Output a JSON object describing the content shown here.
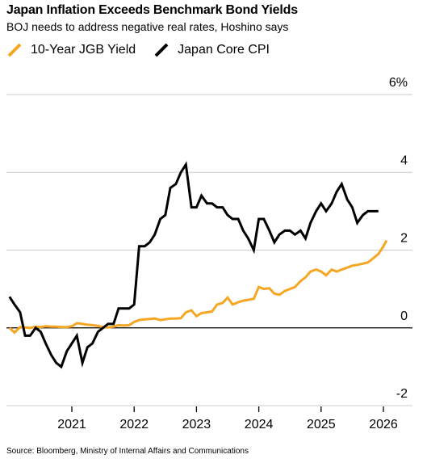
{
  "chart_data": {
    "type": "line",
    "title": "Japan Inflation Exceeds Benchmark Bond Yields",
    "subtitle": "BOJ needs to address negative real rates, Hoshino says",
    "source": "Source: Bloomberg, Ministry of Internal Affairs and Communications",
    "xlabel": "",
    "ylabel": "",
    "xlim": [
      2020.0,
      2026.3
    ],
    "ylim": [
      -2,
      6
    ],
    "y_ticks": [
      -2,
      0,
      2,
      4,
      6
    ],
    "y_tick_labels": [
      "-2",
      "0",
      "2",
      "4",
      "6%"
    ],
    "x_ticks": [
      2021,
      2022,
      2023,
      2024,
      2025,
      2026
    ],
    "x_tick_labels": [
      "2021",
      "2022",
      "2023",
      "2024",
      "2025",
      "2026"
    ],
    "grid": true,
    "legend_position": "top-left",
    "series": [
      {
        "name": "10-Year JGB Yield",
        "color": "#f5a623",
        "x": [
          2020.0,
          2020.08,
          2020.17,
          2020.25,
          2020.33,
          2020.42,
          2020.5,
          2020.58,
          2020.67,
          2020.75,
          2020.83,
          2020.92,
          2021.0,
          2021.08,
          2021.17,
          2021.25,
          2021.33,
          2021.42,
          2021.5,
          2021.58,
          2021.67,
          2021.75,
          2021.83,
          2021.92,
          2022.0,
          2022.08,
          2022.17,
          2022.25,
          2022.33,
          2022.42,
          2022.5,
          2022.58,
          2022.67,
          2022.75,
          2022.83,
          2022.92,
          2023.0,
          2023.08,
          2023.17,
          2023.25,
          2023.33,
          2023.42,
          2023.5,
          2023.58,
          2023.67,
          2023.75,
          2023.83,
          2023.92,
          2024.0,
          2024.08,
          2024.17,
          2024.25,
          2024.33,
          2024.42,
          2024.5,
          2024.58,
          2024.67,
          2024.75,
          2024.83,
          2024.92,
          2025.0,
          2025.08,
          2025.17,
          2025.25,
          2025.33,
          2025.42,
          2025.5,
          2025.58,
          2025.67,
          2025.75,
          2025.83,
          2025.92,
          2026.0,
          2026.05
        ],
        "values": [
          0.0,
          -0.12,
          0.02,
          0.01,
          0.0,
          0.03,
          0.02,
          0.04,
          0.03,
          0.03,
          0.02,
          0.02,
          0.04,
          0.12,
          0.1,
          0.08,
          0.07,
          0.05,
          0.02,
          0.01,
          0.03,
          0.07,
          0.06,
          0.07,
          0.15,
          0.2,
          0.22,
          0.23,
          0.24,
          0.2,
          0.22,
          0.24,
          0.24,
          0.25,
          0.4,
          0.45,
          0.3,
          0.38,
          0.4,
          0.42,
          0.6,
          0.64,
          0.78,
          0.6,
          0.66,
          0.7,
          0.72,
          0.75,
          1.05,
          1.0,
          1.02,
          0.88,
          0.85,
          0.95,
          1.0,
          1.05,
          1.2,
          1.3,
          1.45,
          1.5,
          1.45,
          1.35,
          1.5,
          1.45,
          1.5,
          1.55,
          1.6,
          1.62,
          1.65,
          1.68,
          1.78,
          1.9,
          2.1,
          2.25
        ]
      },
      {
        "name": "Japan Core CPI",
        "color": "#000000",
        "x": [
          2020.0,
          2020.08,
          2020.17,
          2020.25,
          2020.33,
          2020.42,
          2020.5,
          2020.58,
          2020.67,
          2020.75,
          2020.83,
          2020.92,
          2021.0,
          2021.08,
          2021.17,
          2021.25,
          2021.33,
          2021.42,
          2021.5,
          2021.58,
          2021.67,
          2021.75,
          2021.83,
          2021.92,
          2022.0,
          2022.08,
          2022.17,
          2022.25,
          2022.33,
          2022.42,
          2022.5,
          2022.58,
          2022.67,
          2022.75,
          2022.83,
          2022.92,
          2023.0,
          2023.08,
          2023.17,
          2023.25,
          2023.33,
          2023.42,
          2023.5,
          2023.58,
          2023.67,
          2023.75,
          2023.83,
          2023.92,
          2024.0,
          2024.08,
          2024.17,
          2024.25,
          2024.33,
          2024.42,
          2024.5,
          2024.58,
          2024.67,
          2024.75,
          2024.83,
          2024.92,
          2025.0,
          2025.08,
          2025.17,
          2025.25,
          2025.33,
          2025.42,
          2025.5,
          2025.58,
          2025.67,
          2025.75,
          2025.83,
          2025.92
        ],
        "values": [
          0.8,
          0.6,
          0.4,
          -0.2,
          -0.2,
          0.0,
          -0.1,
          -0.4,
          -0.7,
          -0.9,
          -1.0,
          -0.6,
          -0.4,
          -0.2,
          -0.9,
          -0.5,
          -0.4,
          -0.1,
          0.0,
          0.1,
          0.1,
          0.5,
          0.5,
          0.5,
          0.6,
          2.1,
          2.1,
          2.2,
          2.4,
          2.8,
          2.9,
          3.6,
          3.7,
          4.0,
          4.2,
          3.1,
          3.1,
          3.4,
          3.2,
          3.2,
          3.1,
          3.1,
          2.9,
          2.8,
          2.8,
          2.5,
          2.3,
          2.0,
          2.8,
          2.8,
          2.5,
          2.2,
          2.4,
          2.5,
          2.5,
          2.4,
          2.5,
          2.3,
          2.7,
          3.0,
          3.2,
          3.0,
          3.2,
          3.5,
          3.7,
          3.3,
          3.1,
          2.7,
          2.9,
          3.0,
          3.0,
          3.0
        ]
      }
    ]
  }
}
